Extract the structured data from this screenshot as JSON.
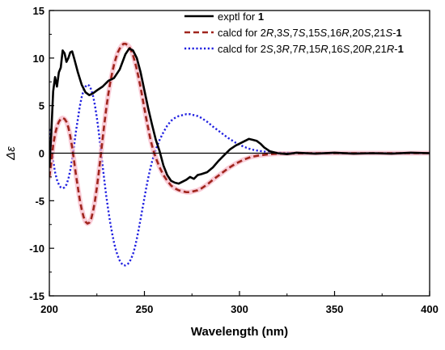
{
  "chart_data": {
    "type": "line",
    "title": "",
    "xlabel": "Wavelength (nm)",
    "ylabel": "Δε",
    "xlim": [
      200,
      400
    ],
    "ylim": [
      -15,
      15
    ],
    "x_ticks": [
      200,
      250,
      300,
      350,
      400
    ],
    "y_ticks": [
      15,
      10,
      5,
      0,
      -5,
      -10,
      -15
    ],
    "grid": false,
    "zero_line": true,
    "legend_position": "top-right",
    "series": [
      {
        "name": "exptl for 1",
        "legend": [
          {
            "text": "exptl for ",
            "style": "normal"
          },
          {
            "text": "1",
            "style": "bold"
          }
        ],
        "color": "#000000",
        "dash": "solid",
        "points": [
          [
            200,
            -1.5
          ],
          [
            201,
            2.0
          ],
          [
            202,
            6.5
          ],
          [
            203,
            8.0
          ],
          [
            204,
            7.0
          ],
          [
            205,
            8.5
          ],
          [
            206,
            9.0
          ],
          [
            207,
            10.8
          ],
          [
            208,
            10.5
          ],
          [
            209,
            9.6
          ],
          [
            210,
            10.0
          ],
          [
            211,
            10.6
          ],
          [
            212,
            10.7
          ],
          [
            213,
            10.0
          ],
          [
            215,
            8.5
          ],
          [
            217,
            7.2
          ],
          [
            219,
            6.4
          ],
          [
            221,
            6.1
          ],
          [
            223,
            6.3
          ],
          [
            225,
            6.6
          ],
          [
            228,
            7.0
          ],
          [
            231,
            7.6
          ],
          [
            234,
            7.9
          ],
          [
            237,
            8.8
          ],
          [
            240,
            10.4
          ],
          [
            242,
            11.0
          ],
          [
            244,
            10.8
          ],
          [
            246,
            10.0
          ],
          [
            248,
            8.5
          ],
          [
            250,
            6.6
          ],
          [
            252,
            4.7
          ],
          [
            254,
            3.0
          ],
          [
            256,
            1.4
          ],
          [
            258,
            0.2
          ],
          [
            260,
            -1.3
          ],
          [
            262,
            -2.3
          ],
          [
            264,
            -2.9
          ],
          [
            266,
            -3.1
          ],
          [
            268,
            -3.2
          ],
          [
            270,
            -3.0
          ],
          [
            272,
            -2.8
          ],
          [
            274,
            -2.5
          ],
          [
            276,
            -2.7
          ],
          [
            278,
            -2.3
          ],
          [
            280,
            -2.2
          ],
          [
            283,
            -2.0
          ],
          [
            286,
            -1.5
          ],
          [
            289,
            -0.8
          ],
          [
            292,
            -0.2
          ],
          [
            295,
            0.4
          ],
          [
            298,
            0.8
          ],
          [
            301,
            1.1
          ],
          [
            303,
            1.3
          ],
          [
            305,
            1.5
          ],
          [
            307,
            1.4
          ],
          [
            309,
            1.3
          ],
          [
            311,
            1.0
          ],
          [
            313,
            0.6
          ],
          [
            316,
            0.2
          ],
          [
            320,
            0.0
          ],
          [
            325,
            -0.1
          ],
          [
            330,
            0.05
          ],
          [
            340,
            -0.05
          ],
          [
            350,
            0.05
          ],
          [
            360,
            -0.05
          ],
          [
            370,
            0.0
          ],
          [
            380,
            -0.05
          ],
          [
            390,
            0.05
          ],
          [
            400,
            0.0
          ]
        ]
      },
      {
        "name": "calcd for 2R,3S,7S,15S,16R,20S,21S-1",
        "legend": [
          {
            "text": "calcd for 2",
            "style": "normal"
          },
          {
            "text": "R",
            "style": "italic"
          },
          {
            "text": ",3",
            "style": "normal"
          },
          {
            "text": "S",
            "style": "italic"
          },
          {
            "text": ",7",
            "style": "normal"
          },
          {
            "text": "S",
            "style": "italic"
          },
          {
            "text": ",15",
            "style": "normal"
          },
          {
            "text": "S",
            "style": "italic"
          },
          {
            "text": ",16",
            "style": "normal"
          },
          {
            "text": "R",
            "style": "italic"
          },
          {
            "text": ",20",
            "style": "normal"
          },
          {
            "text": "S",
            "style": "italic"
          },
          {
            "text": ",21",
            "style": "normal"
          },
          {
            "text": "S",
            "style": "italic"
          },
          {
            "text": "-",
            "style": "normal"
          },
          {
            "text": "1",
            "style": "bold"
          }
        ],
        "color": "#a0251d",
        "halo_color": "#f6b8c8",
        "dash": "dashed",
        "points": [
          [
            200,
            -2.5
          ],
          [
            201,
            -1.0
          ],
          [
            202,
            0.8
          ],
          [
            203,
            2.0
          ],
          [
            204,
            2.8
          ],
          [
            205,
            3.3
          ],
          [
            206,
            3.6
          ],
          [
            207,
            3.7
          ],
          [
            208,
            3.6
          ],
          [
            209,
            3.3
          ],
          [
            210,
            2.7
          ],
          [
            211,
            1.8
          ],
          [
            212,
            0.6
          ],
          [
            213,
            -0.8
          ],
          [
            214,
            -2.3
          ],
          [
            215,
            -3.6
          ],
          [
            216,
            -4.9
          ],
          [
            217,
            -5.9
          ],
          [
            218,
            -6.7
          ],
          [
            219,
            -7.2
          ],
          [
            220,
            -7.4
          ],
          [
            221,
            -7.3
          ],
          [
            222,
            -6.9
          ],
          [
            223,
            -6.1
          ],
          [
            224,
            -5.0
          ],
          [
            225,
            -3.6
          ],
          [
            226,
            -2.0
          ],
          [
            227,
            -0.3
          ],
          [
            228,
            1.5
          ],
          [
            229,
            3.2
          ],
          [
            230,
            4.8
          ],
          [
            231,
            6.2
          ],
          [
            232,
            7.4
          ],
          [
            233,
            8.4
          ],
          [
            234,
            9.3
          ],
          [
            235,
            10.0
          ],
          [
            236,
            10.6
          ],
          [
            237,
            11.0
          ],
          [
            238,
            11.3
          ],
          [
            239,
            11.5
          ],
          [
            240,
            11.5
          ],
          [
            241,
            11.4
          ],
          [
            242,
            11.2
          ],
          [
            243,
            10.8
          ],
          [
            244,
            10.3
          ],
          [
            245,
            9.6
          ],
          [
            246,
            8.8
          ],
          [
            247,
            7.9
          ],
          [
            248,
            6.9
          ],
          [
            249,
            5.8
          ],
          [
            250,
            4.7
          ],
          [
            251,
            3.6
          ],
          [
            252,
            2.6
          ],
          [
            253,
            1.6
          ],
          [
            254,
            0.8
          ],
          [
            255,
            0.1
          ],
          [
            256,
            -0.5
          ],
          [
            257,
            -1.0
          ],
          [
            258,
            -1.5
          ],
          [
            259,
            -1.9
          ],
          [
            260,
            -2.3
          ],
          [
            262,
            -2.9
          ],
          [
            264,
            -3.4
          ],
          [
            266,
            -3.7
          ],
          [
            268,
            -3.9
          ],
          [
            270,
            -4.0
          ],
          [
            272,
            -4.1
          ],
          [
            274,
            -4.1
          ],
          [
            276,
            -4.0
          ],
          [
            278,
            -3.9
          ],
          [
            280,
            -3.7
          ],
          [
            283,
            -3.3
          ],
          [
            286,
            -2.8
          ],
          [
            290,
            -2.2
          ],
          [
            294,
            -1.6
          ],
          [
            298,
            -1.1
          ],
          [
            302,
            -0.7
          ],
          [
            306,
            -0.4
          ],
          [
            310,
            -0.25
          ],
          [
            315,
            -0.12
          ],
          [
            320,
            -0.05
          ],
          [
            330,
            -0.02
          ],
          [
            340,
            0.0
          ],
          [
            400,
            0.0
          ]
        ]
      },
      {
        "name": "calcd for 2S,3R,7R,15R,16S,20R,21R-1",
        "legend": [
          {
            "text": "calcd for 2",
            "style": "normal"
          },
          {
            "text": "S",
            "style": "italic"
          },
          {
            "text": ",3",
            "style": "normal"
          },
          {
            "text": "R",
            "style": "italic"
          },
          {
            "text": ",7",
            "style": "normal"
          },
          {
            "text": "R",
            "style": "italic"
          },
          {
            "text": ",15",
            "style": "normal"
          },
          {
            "text": "R",
            "style": "italic"
          },
          {
            "text": ",16",
            "style": "normal"
          },
          {
            "text": "S",
            "style": "italic"
          },
          {
            "text": ",20",
            "style": "normal"
          },
          {
            "text": "R",
            "style": "italic"
          },
          {
            "text": ",21",
            "style": "normal"
          },
          {
            "text": "R",
            "style": "italic"
          },
          {
            "text": "-",
            "style": "normal"
          },
          {
            "text": "1",
            "style": "bold"
          }
        ],
        "color": "#1f1fe0",
        "dash": "dotted",
        "points": [
          [
            200,
            2.5
          ],
          [
            201,
            1.0
          ],
          [
            202,
            -0.8
          ],
          [
            203,
            -2.0
          ],
          [
            204,
            -2.8
          ],
          [
            205,
            -3.3
          ],
          [
            206,
            -3.6
          ],
          [
            207,
            -3.7
          ],
          [
            208,
            -3.6
          ],
          [
            209,
            -3.3
          ],
          [
            210,
            -2.7
          ],
          [
            211,
            -1.8
          ],
          [
            212,
            -0.6
          ],
          [
            213,
            0.8
          ],
          [
            214,
            2.3
          ],
          [
            215,
            3.6
          ],
          [
            216,
            4.9
          ],
          [
            217,
            5.9
          ],
          [
            218,
            6.6
          ],
          [
            219,
            7.0
          ],
          [
            220,
            7.2
          ],
          [
            221,
            7.1
          ],
          [
            222,
            6.7
          ],
          [
            223,
            6.0
          ],
          [
            224,
            5.0
          ],
          [
            225,
            3.7
          ],
          [
            226,
            2.2
          ],
          [
            227,
            0.5
          ],
          [
            228,
            -1.3
          ],
          [
            229,
            -3.0
          ],
          [
            230,
            -4.6
          ],
          [
            231,
            -6.0
          ],
          [
            232,
            -7.3
          ],
          [
            233,
            -8.4
          ],
          [
            234,
            -9.4
          ],
          [
            235,
            -10.2
          ],
          [
            236,
            -10.8
          ],
          [
            237,
            -11.3
          ],
          [
            238,
            -11.6
          ],
          [
            239,
            -11.8
          ],
          [
            240,
            -11.8
          ],
          [
            241,
            -11.7
          ],
          [
            242,
            -11.5
          ],
          [
            243,
            -11.1
          ],
          [
            244,
            -10.6
          ],
          [
            245,
            -9.9
          ],
          [
            246,
            -9.0
          ],
          [
            247,
            -8.0
          ],
          [
            248,
            -6.9
          ],
          [
            249,
            -5.8
          ],
          [
            250,
            -4.7
          ],
          [
            251,
            -3.6
          ],
          [
            252,
            -2.6
          ],
          [
            253,
            -1.7
          ],
          [
            254,
            -0.9
          ],
          [
            255,
            -0.2
          ],
          [
            256,
            0.4
          ],
          [
            257,
            0.9
          ],
          [
            258,
            1.4
          ],
          [
            259,
            1.8
          ],
          [
            260,
            2.2
          ],
          [
            262,
            2.9
          ],
          [
            264,
            3.4
          ],
          [
            266,
            3.7
          ],
          [
            268,
            3.9
          ],
          [
            270,
            4.0
          ],
          [
            272,
            4.1
          ],
          [
            274,
            4.1
          ],
          [
            276,
            4.0
          ],
          [
            278,
            3.9
          ],
          [
            280,
            3.7
          ],
          [
            283,
            3.3
          ],
          [
            286,
            2.8
          ],
          [
            290,
            2.2
          ],
          [
            294,
            1.6
          ],
          [
            298,
            1.1
          ],
          [
            302,
            0.7
          ],
          [
            306,
            0.4
          ],
          [
            310,
            0.25
          ],
          [
            315,
            0.12
          ],
          [
            320,
            0.05
          ],
          [
            330,
            0.02
          ],
          [
            340,
            0.0
          ],
          [
            400,
            0.0
          ]
        ]
      }
    ]
  }
}
